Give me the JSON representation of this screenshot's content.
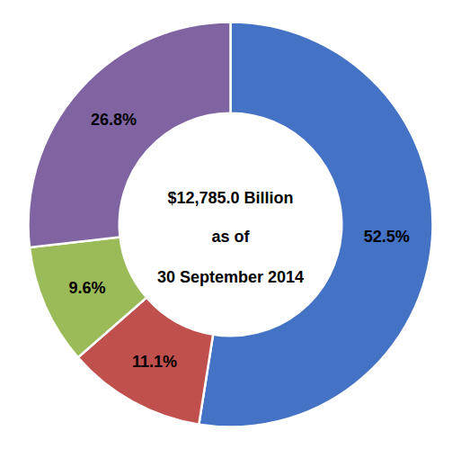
{
  "chart_data": {
    "type": "pie",
    "values": [
      52.5,
      11.1,
      9.6,
      26.8
    ],
    "value_labels": [
      "52.5%",
      "11.1%",
      "9.6%",
      "26.8%"
    ],
    "colors": [
      "#4472c4",
      "#c0504d",
      "#9bbb59",
      "#8064a2"
    ],
    "data_labels": true,
    "annotations": [
      "$12,785.0 Billion",
      "as of",
      "30 September 2014"
    ]
  }
}
